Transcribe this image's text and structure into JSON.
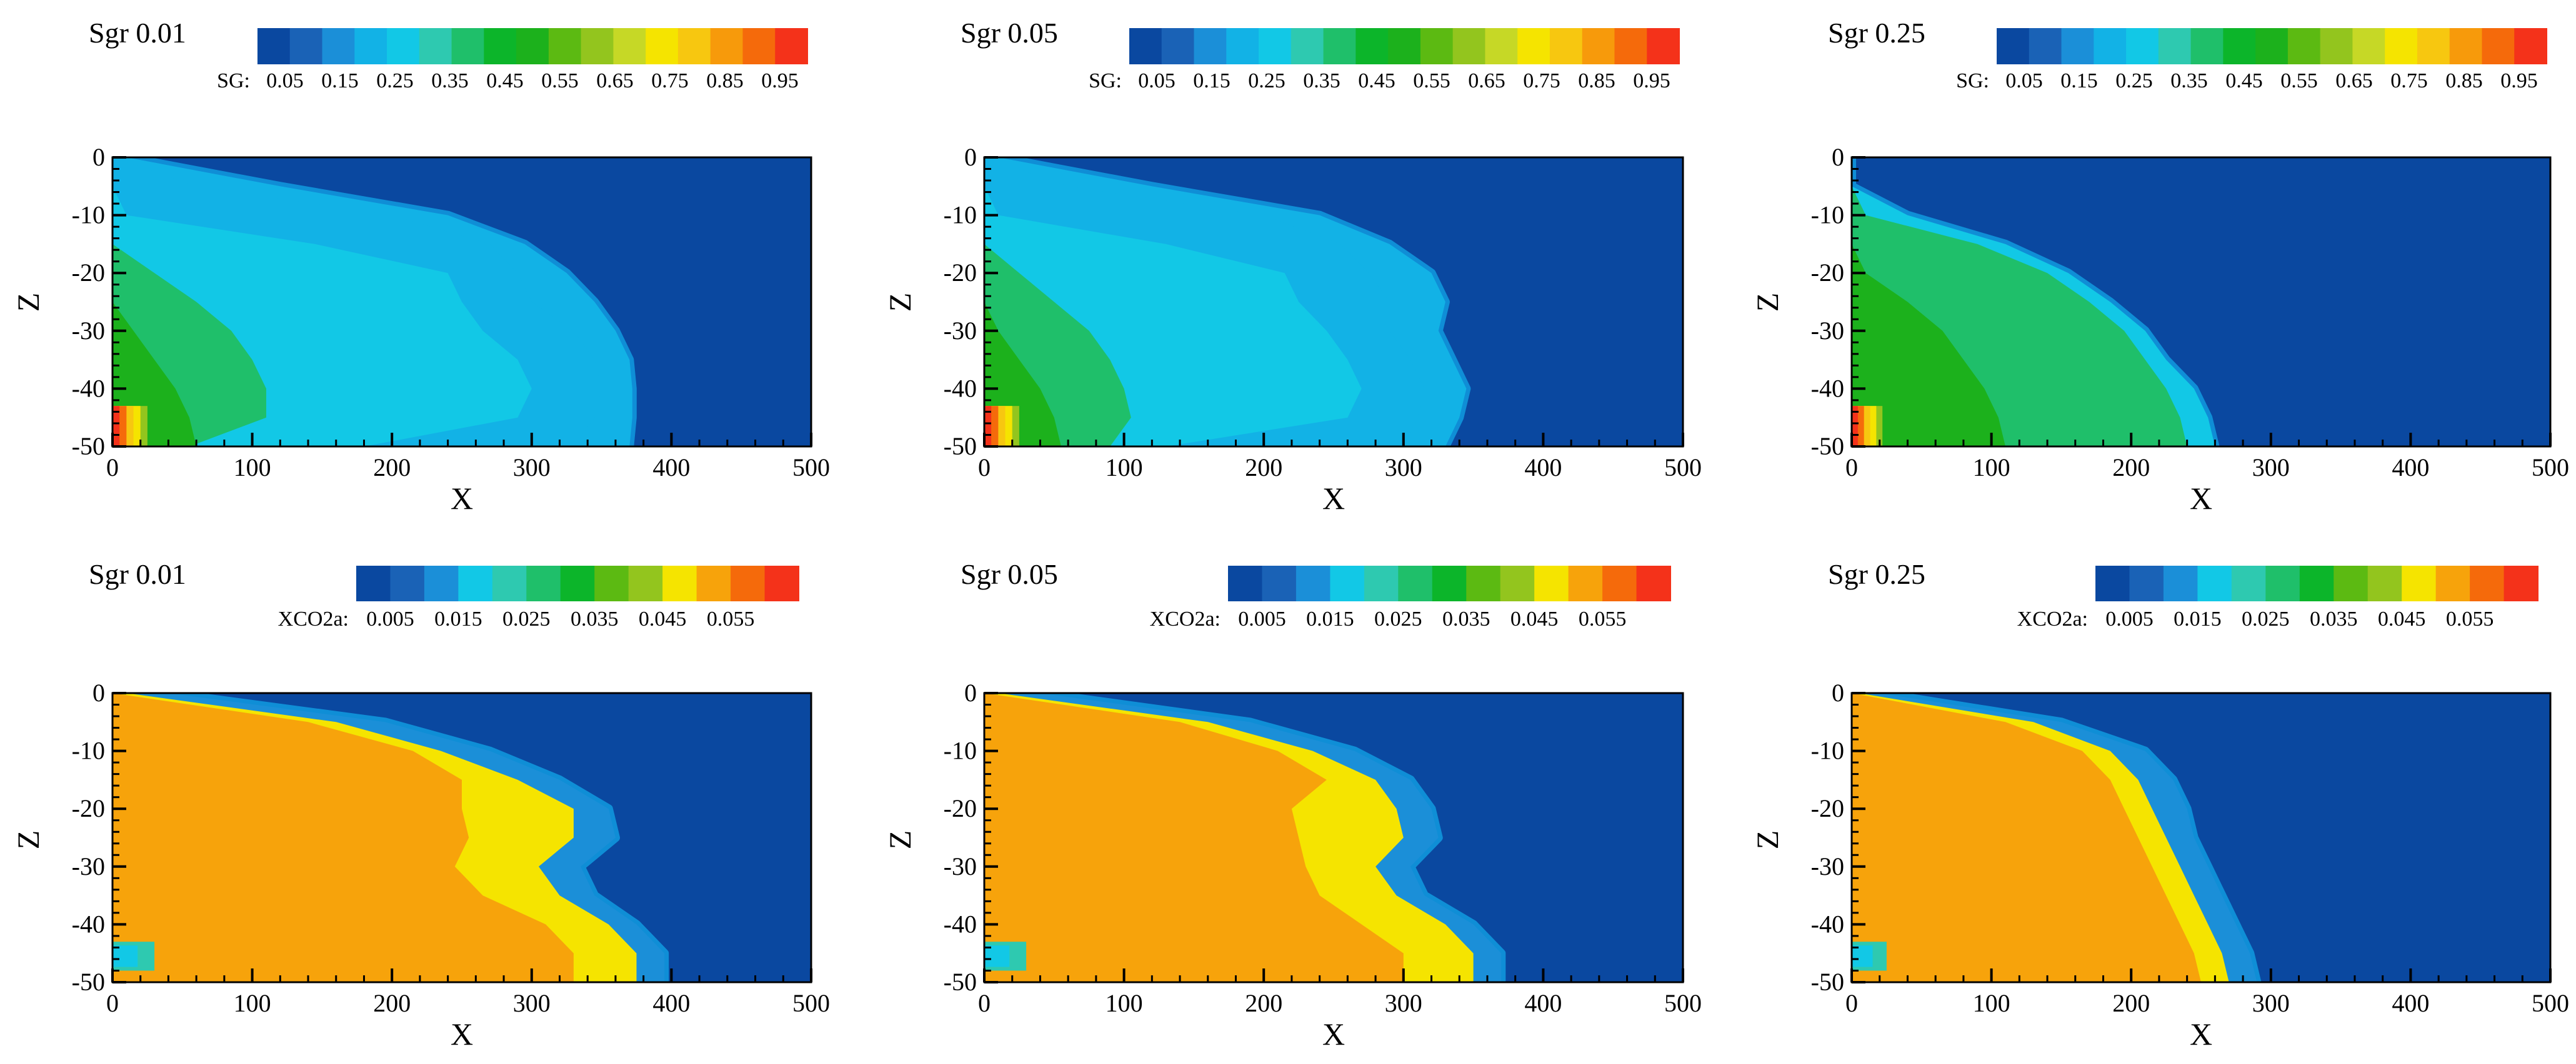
{
  "colors": {
    "background": "#ffffff",
    "plume_edge_blue": "#0f8ed6",
    "sg_palette": [
      "#0a48a0",
      "#1a62b6",
      "#1b8fd8",
      "#12b2e6",
      "#12c8e6",
      "#2ec9b0",
      "#1fbf6a",
      "#0cb52a",
      "#1cb11c",
      "#5cba12",
      "#93c51e",
      "#c6d826",
      "#f5e400",
      "#f7c710",
      "#f79a0b",
      "#f56a0b",
      "#f4321a"
    ],
    "xco2_palette": [
      "#0a48a0",
      "#1a62b6",
      "#1b8fd8",
      "#12c8e6",
      "#2ec9b0",
      "#1fbf6a",
      "#0cb52a",
      "#5cba12",
      "#93c51e",
      "#f5e400",
      "#f7a30b",
      "#f56a0b",
      "#f4321a"
    ]
  },
  "legends": {
    "sg": {
      "variable": "SG:",
      "tick_labels": [
        "0.05",
        "0.15",
        "0.25",
        "0.35",
        "0.45",
        "0.55",
        "0.65",
        "0.75",
        "0.85",
        "0.95"
      ]
    },
    "xco2": {
      "variable": "XCO2a:",
      "tick_labels": [
        "0.005",
        "0.015",
        "0.025",
        "0.035",
        "0.045",
        "0.055"
      ]
    }
  },
  "axes": {
    "xlabel": "X",
    "ylabel": "Z",
    "xticks": [
      "0",
      "100",
      "200",
      "300",
      "400",
      "500"
    ],
    "yticks": [
      "0",
      "-10",
      "-20",
      "-30",
      "-40",
      "-50"
    ]
  },
  "chart_data": [
    {
      "type": "heatmap",
      "title": "Sgr 0.01",
      "variable": "SG",
      "xlim": [
        0,
        500
      ],
      "ylim": [
        -50,
        0
      ],
      "layers": [
        {
          "value": 0.15,
          "boundary_x_by_depth": [
            10,
            120,
            240,
            295,
            325,
            345,
            360,
            370,
            372,
            372,
            370
          ]
        },
        {
          "value": 0.2,
          "boundary_x_by_depth": [
            0,
            60,
            200,
            270,
            290,
            300,
            330,
            345,
            350,
            345,
            330
          ]
        },
        {
          "value": 0.25,
          "boundary_x_by_depth": [
            0,
            0,
            10,
            145,
            240,
            250,
            265,
            290,
            300,
            290,
            180
          ]
        },
        {
          "value": 0.35,
          "boundary_x_by_depth": [
            0,
            0,
            0,
            0,
            30,
            60,
            85,
            100,
            110,
            110,
            55
          ]
        },
        {
          "value": 0.45,
          "boundary_x_by_depth": [
            0,
            0,
            0,
            0,
            0,
            0,
            15,
            30,
            45,
            55,
            60
          ]
        }
      ],
      "hotspot": {
        "x": [
          0,
          25
        ],
        "z": [
          -50,
          -43
        ],
        "value": 0.95
      }
    },
    {
      "type": "heatmap",
      "title": "Sgr 0.05",
      "variable": "SG",
      "xlim": [
        0,
        500
      ],
      "ylim": [
        -50,
        0
      ],
      "layers": [
        {
          "value": 0.15,
          "boundary_x_by_depth": [
            10,
            120,
            240,
            290,
            320,
            330,
            325,
            335,
            345,
            340,
            330
          ]
        },
        {
          "value": 0.2,
          "boundary_x_by_depth": [
            0,
            60,
            200,
            255,
            275,
            290,
            290,
            305,
            315,
            310,
            300
          ]
        },
        {
          "value": 0.25,
          "boundary_x_by_depth": [
            0,
            0,
            10,
            130,
            215,
            225,
            245,
            260,
            270,
            260,
            130
          ]
        },
        {
          "value": 0.35,
          "boundary_x_by_depth": [
            0,
            0,
            0,
            0,
            25,
            50,
            75,
            90,
            100,
            105,
            90
          ]
        },
        {
          "value": 0.45,
          "boundary_x_by_depth": [
            0,
            0,
            0,
            0,
            0,
            0,
            10,
            25,
            40,
            50,
            55
          ]
        }
      ],
      "hotspot": {
        "x": [
          0,
          25
        ],
        "z": [
          -50,
          -43
        ],
        "value": 0.95
      }
    },
    {
      "type": "heatmap",
      "title": "Sgr 0.25",
      "variable": "SG",
      "xlim": [
        0,
        500
      ],
      "ylim": [
        -50,
        0
      ],
      "layers": [
        {
          "value": 0.25,
          "boundary_x_by_depth": [
            0,
            0,
            40,
            110,
            155,
            185,
            210,
            225,
            245,
            255,
            260
          ]
        },
        {
          "value": 0.35,
          "boundary_x_by_depth": [
            0,
            0,
            10,
            90,
            140,
            170,
            195,
            210,
            225,
            235,
            240
          ]
        },
        {
          "value": 0.45,
          "boundary_x_by_depth": [
            0,
            0,
            0,
            0,
            10,
            40,
            65,
            80,
            95,
            105,
            110
          ]
        }
      ],
      "hotspot": {
        "x": [
          0,
          22
        ],
        "z": [
          -50,
          -43
        ],
        "value": 0.95
      }
    },
    {
      "type": "heatmap",
      "title": "Sgr 0.01",
      "variable": "XCO2a",
      "xlim": [
        0,
        500
      ],
      "ylim": [
        -50,
        0
      ],
      "layers": [
        {
          "value": 0.01,
          "boundary_x_by_depth": [
            40,
            195,
            270,
            320,
            355,
            360,
            335,
            345,
            375,
            395,
            395
          ]
        },
        {
          "value": 0.045,
          "boundary_x_by_depth": [
            10,
            160,
            235,
            290,
            330,
            330,
            305,
            320,
            355,
            375,
            375
          ]
        },
        {
          "value": 0.05,
          "boundary_x_by_depth": [
            0,
            140,
            215,
            250,
            250,
            255,
            245,
            265,
            310,
            330,
            330
          ]
        }
      ],
      "hotspot": {
        "x": [
          0,
          30
        ],
        "z": [
          -48,
          -43
        ],
        "value": 0.025
      }
    },
    {
      "type": "heatmap",
      "title": "Sgr 0.05",
      "variable": "XCO2a",
      "xlim": [
        0,
        500
      ],
      "ylim": [
        -50,
        0
      ],
      "layers": [
        {
          "value": 0.01,
          "boundary_x_by_depth": [
            40,
            190,
            265,
            305,
            320,
            325,
            305,
            315,
            350,
            370,
            370
          ]
        },
        {
          "value": 0.045,
          "boundary_x_by_depth": [
            10,
            160,
            235,
            280,
            295,
            300,
            280,
            295,
            330,
            350,
            350
          ]
        },
        {
          "value": 0.05,
          "boundary_x_by_depth": [
            0,
            140,
            210,
            245,
            220,
            225,
            230,
            240,
            270,
            300,
            300
          ]
        }
      ],
      "hotspot": {
        "x": [
          0,
          30
        ],
        "z": [
          -48,
          -43
        ],
        "value": 0.025
      }
    },
    {
      "type": "heatmap",
      "title": "Sgr 0.25",
      "variable": "XCO2a",
      "xlim": [
        0,
        500
      ],
      "ylim": [
        -50,
        0
      ],
      "layers": [
        {
          "value": 0.01,
          "boundary_x_by_depth": [
            20,
            150,
            210,
            230,
            240,
            245,
            255,
            265,
            275,
            285,
            290
          ]
        },
        {
          "value": 0.045,
          "boundary_x_by_depth": [
            5,
            130,
            185,
            205,
            215,
            225,
            235,
            245,
            255,
            265,
            270
          ]
        },
        {
          "value": 0.05,
          "boundary_x_by_depth": [
            0,
            110,
            165,
            185,
            195,
            205,
            215,
            225,
            235,
            245,
            250
          ]
        }
      ],
      "hotspot": {
        "x": [
          0,
          25
        ],
        "z": [
          -48,
          -43
        ],
        "value": 0.025
      }
    }
  ]
}
